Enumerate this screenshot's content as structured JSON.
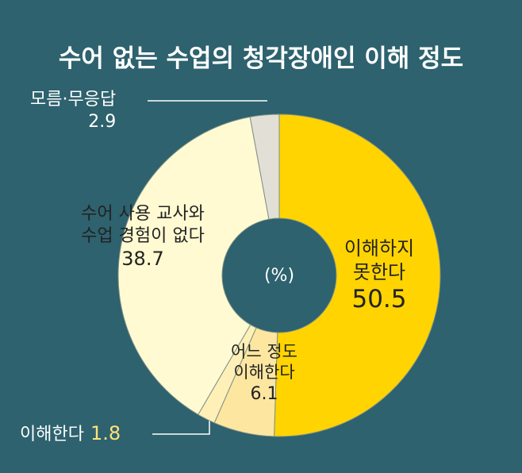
{
  "chart_data": {
    "type": "donut",
    "title": "수어 없는 수업의 청각장애인 이해 정도",
    "unit_label": "(%)",
    "categories": [
      "이해하지\n못한다",
      "어느 정도\n이해한다",
      "이해한다",
      "수어 사용 교사와\n수업 경험이 없다",
      "모름·무응답"
    ],
    "values": [
      50.5,
      6.1,
      1.8,
      38.7,
      2.9
    ],
    "colors": [
      "#ffd400",
      "#fde6a0",
      "#fff0b8",
      "#fffad2",
      "#e2e0d6"
    ]
  }
}
